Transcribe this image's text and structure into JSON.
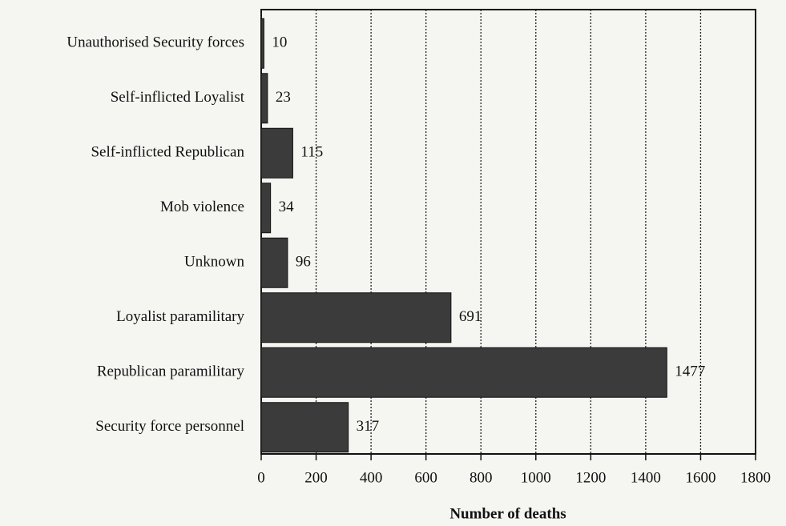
{
  "chart_data": {
    "type": "barh",
    "categories": [
      "Unauthorised Security forces",
      "Self-inflicted Loyalist",
      "Self-inflicted Republican",
      "Mob violence",
      "Unknown",
      "Loyalist paramilitary",
      "Republican paramilitary",
      "Security force personnel"
    ],
    "values": [
      10,
      23,
      115,
      34,
      96,
      691,
      1477,
      317
    ],
    "color": "#3b3b3b",
    "xlabel": "Number of deaths",
    "xlim": [
      0,
      1800
    ],
    "xticks": [
      0,
      200,
      400,
      600,
      800,
      1000,
      1200,
      1400,
      1600,
      1800
    ],
    "grid": true
  }
}
